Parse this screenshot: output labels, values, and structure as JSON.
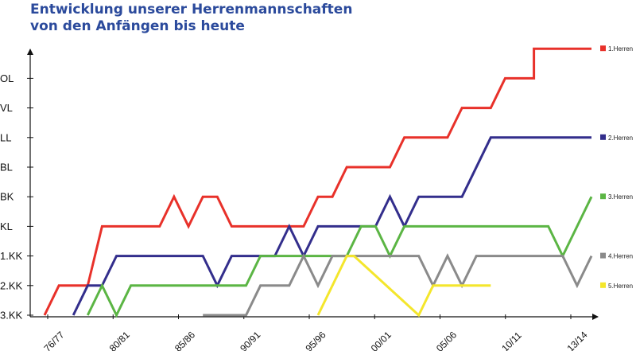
{
  "chart_data": {
    "type": "line",
    "title": [
      "Entwicklung unserer Herrenmannschaften",
      "von den Anfängen bis heute"
    ],
    "xlabel": "",
    "ylabel": "",
    "y_levels": [
      "3.KK",
      "2.KK",
      "1.KK",
      "KL",
      "BK",
      "BL",
      "LL",
      "VL",
      "OL"
    ],
    "x_ticks": [
      "76/77",
      "80/81",
      "85/86",
      "90/91",
      "95/96",
      "00/01",
      "05/06",
      "10/11",
      "13/14"
    ],
    "x_range": [
      1976,
      2014
    ],
    "grid": false,
    "legend_position": "right",
    "series": [
      {
        "name": "1.Herren",
        "color": "#e8312a",
        "points": [
          [
            1976,
            0
          ],
          [
            1977,
            1
          ],
          [
            1979,
            1
          ],
          [
            1980,
            3
          ],
          [
            1984,
            3
          ],
          [
            1985,
            4
          ],
          [
            1986,
            3
          ],
          [
            1987,
            4
          ],
          [
            1988,
            4
          ],
          [
            1989,
            3
          ],
          [
            1994,
            3
          ],
          [
            1995,
            4
          ],
          [
            1996,
            4
          ],
          [
            1997,
            5
          ],
          [
            2000,
            5
          ],
          [
            2001,
            6
          ],
          [
            2004,
            6
          ],
          [
            2005,
            7
          ],
          [
            2007,
            7
          ],
          [
            2008,
            8
          ],
          [
            2010,
            8
          ],
          [
            2010,
            9
          ],
          [
            2014,
            9
          ]
        ]
      },
      {
        "name": "2.Herren",
        "color": "#332e8c",
        "points": [
          [
            1978,
            0
          ],
          [
            1979,
            1
          ],
          [
            1980,
            1
          ],
          [
            1981,
            2
          ],
          [
            1987,
            2
          ],
          [
            1988,
            1
          ],
          [
            1989,
            2
          ],
          [
            1992,
            2
          ],
          [
            1993,
            3
          ],
          [
            1994,
            2
          ],
          [
            1995,
            3
          ],
          [
            1999,
            3
          ],
          [
            2000,
            4
          ],
          [
            2001,
            3
          ],
          [
            2002,
            4
          ],
          [
            2005,
            4
          ],
          [
            2007,
            6
          ],
          [
            2014,
            6
          ]
        ]
      },
      {
        "name": "3.Herren",
        "color": "#5bb544",
        "points": [
          [
            1979,
            0
          ],
          [
            1980,
            1
          ],
          [
            1981,
            0
          ],
          [
            1982,
            1
          ],
          [
            1990,
            1
          ],
          [
            1991,
            2
          ],
          [
            1997,
            2
          ],
          [
            1998,
            3
          ],
          [
            1999,
            3
          ],
          [
            2000,
            2
          ],
          [
            2001,
            3
          ],
          [
            2008,
            3
          ],
          [
            2011,
            3
          ],
          [
            2012,
            2
          ],
          [
            2014,
            4
          ]
        ]
      },
      {
        "name": "4.Herren",
        "color": "#8a8a8a",
        "points": [
          [
            1987,
            0
          ],
          [
            1990,
            0
          ],
          [
            1991,
            1
          ],
          [
            1993,
            1
          ],
          [
            1994,
            2
          ],
          [
            1995,
            1
          ],
          [
            1996,
            2
          ],
          [
            2002,
            2
          ],
          [
            2003,
            1
          ],
          [
            2004,
            2
          ],
          [
            2005,
            1
          ],
          [
            2006,
            2
          ],
          [
            2012,
            2
          ],
          [
            2013,
            1
          ],
          [
            2014,
            2
          ]
        ]
      },
      {
        "name": "5.Herren",
        "color": "#f4e62c",
        "points": [
          [
            1995,
            0
          ],
          [
            1997,
            2
          ],
          [
            1997.5,
            2
          ],
          [
            2002,
            0
          ],
          [
            2003,
            1
          ],
          [
            2007,
            1
          ]
        ]
      }
    ]
  }
}
